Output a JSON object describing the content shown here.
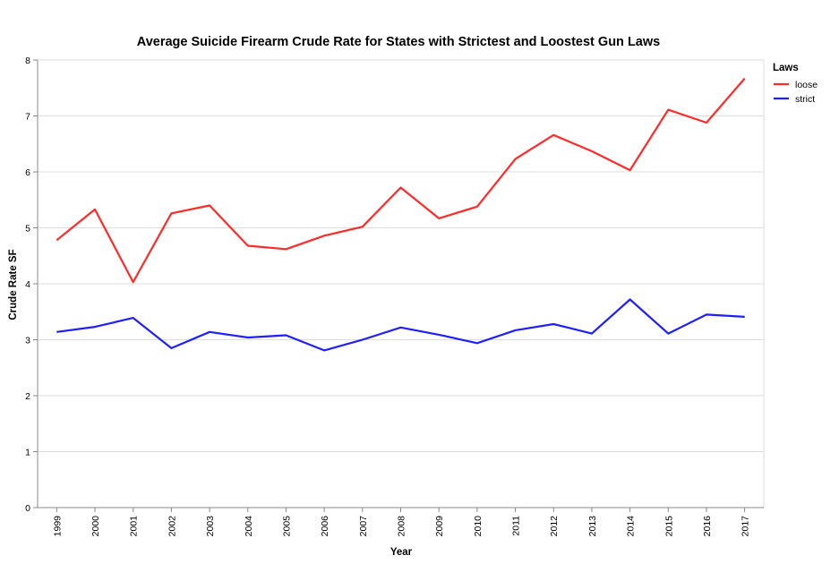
{
  "chart_data": {
    "type": "line",
    "title": "Average Suicide Firearm Crude Rate for States with Strictest and Loostest Gun Laws",
    "xlabel": "Year",
    "ylabel": "Crude Rate SF",
    "ylim": [
      0,
      8
    ],
    "yticks": [
      "0",
      "1",
      "2",
      "3",
      "4",
      "5",
      "6",
      "7",
      "8"
    ],
    "categories": [
      "1999",
      "2000",
      "2001",
      "2002",
      "2003",
      "2004",
      "2005",
      "2006",
      "2007",
      "2008",
      "2009",
      "2010",
      "2011",
      "2012",
      "2013",
      "2014",
      "2015",
      "2016",
      "2017"
    ],
    "legend": {
      "title": "Laws",
      "position": "top-right"
    },
    "grid": true,
    "series": [
      {
        "name": "loose",
        "color": "#ff2a2a",
        "values": [
          4.78,
          5.33,
          4.03,
          5.26,
          5.4,
          4.68,
          4.62,
          4.86,
          5.02,
          5.72,
          5.17,
          5.38,
          6.23,
          6.66,
          6.37,
          6.03,
          7.11,
          6.88,
          7.67
        ]
      },
      {
        "name": "strict",
        "color": "#1f1fff",
        "values": [
          3.14,
          3.23,
          3.39,
          2.85,
          3.14,
          3.04,
          3.08,
          2.81,
          3.0,
          3.22,
          3.09,
          2.94,
          3.17,
          3.28,
          3.11,
          3.72,
          3.11,
          3.45,
          3.41
        ]
      }
    ]
  }
}
